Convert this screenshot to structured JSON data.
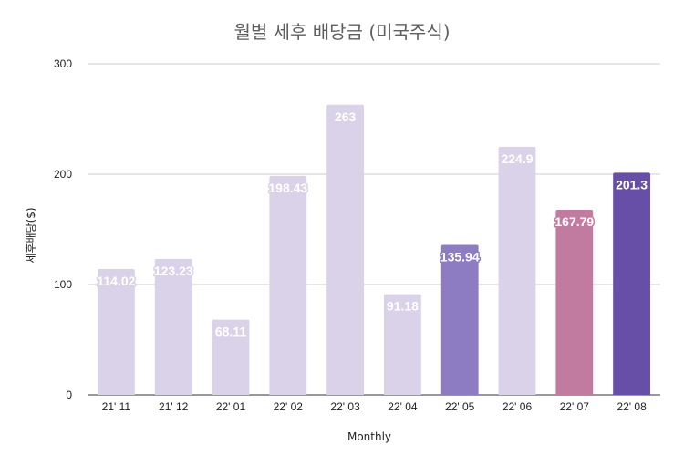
{
  "chart_data": {
    "type": "bar",
    "title": "월별 세후 배당금 (미국주식)",
    "xlabel": "Monthly",
    "ylabel": "세후배당($)",
    "ylim": [
      0,
      300
    ],
    "yticks": [
      0,
      100,
      200,
      300
    ],
    "grid": true,
    "legend": "none",
    "categories": [
      "21' 11",
      "21' 12",
      "22' 01",
      "22' 02",
      "22' 03",
      "22' 04",
      "22' 05",
      "22' 06",
      "22' 07",
      "22' 08"
    ],
    "values": [
      114.02,
      123.23,
      68.11,
      198.43,
      263,
      91.18,
      135.94,
      224.9,
      167.79,
      201.3
    ],
    "data_labels": [
      "114.02",
      "123.23",
      "68.11",
      "198.43",
      "263",
      "91.18",
      "135.94",
      "224.9",
      "167.79",
      "201.3"
    ],
    "colors": [
      "#d9d2e9",
      "#d9d2e9",
      "#d9d2e9",
      "#d9d2e9",
      "#d9d2e9",
      "#d9d2e9",
      "#8e7cc3",
      "#d9d2e9",
      "#c27ba0",
      "#674ea7"
    ],
    "gridline_color": "#cccccc",
    "axis_color": "#333333"
  }
}
